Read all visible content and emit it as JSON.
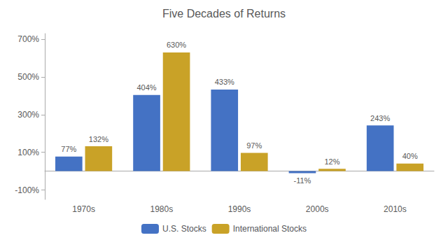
{
  "chart_data": {
    "type": "bar",
    "title": "Five Decades of Returns",
    "categories": [
      "1970s",
      "1980s",
      "1990s",
      "2000s",
      "2010s"
    ],
    "series": [
      {
        "name": "U.S. Stocks",
        "color": "#4472C4",
        "values": [
          77,
          404,
          433,
          -11,
          243
        ],
        "value_labels": [
          "77%",
          "404%",
          "433%",
          "-11%",
          "243%"
        ]
      },
      {
        "name": "International Stocks",
        "color": "#C9A227",
        "values": [
          132,
          630,
          97,
          12,
          40
        ],
        "value_labels": [
          "132%",
          "630%",
          "97%",
          "12%",
          "40%"
        ]
      }
    ],
    "ylim": [
      -150,
      730
    ],
    "yticks": [
      {
        "value": -100,
        "label": "-100%"
      },
      {
        "value": 100,
        "label": "100%"
      },
      {
        "value": 300,
        "label": "300%"
      },
      {
        "value": 500,
        "label": "500%"
      },
      {
        "value": 700,
        "label": "700%"
      }
    ],
    "grid": false,
    "legend": "bottom",
    "data_labels": true
  }
}
